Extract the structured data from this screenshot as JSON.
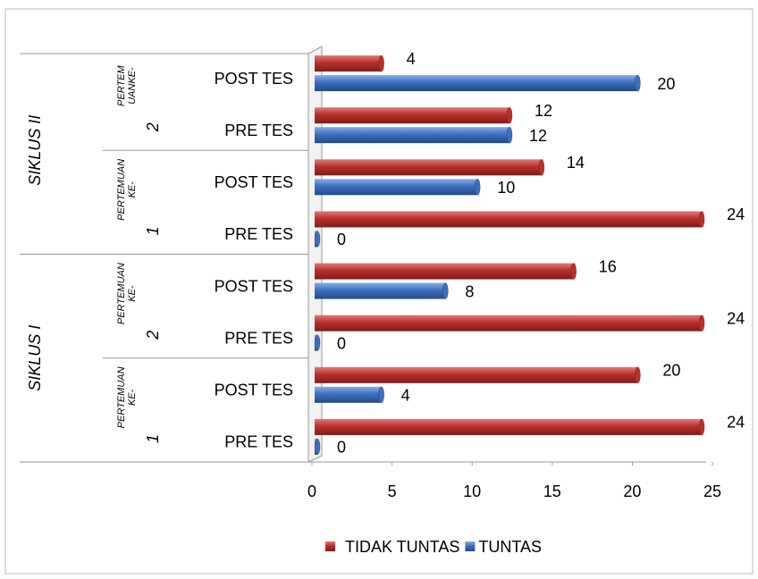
{
  "chart_data": {
    "type": "bar",
    "orientation": "horizontal",
    "groups": [
      {
        "label": "SIKLUS I",
        "subgroups": [
          {
            "lines": [
              "PERTEMUAN",
              "KE-"
            ],
            "number": "1"
          },
          {
            "lines": [
              "PERTEMUAN",
              "KE-"
            ],
            "number": "2"
          }
        ]
      },
      {
        "label": "SIKLUS II",
        "subgroups": [
          {
            "lines": [
              "PERTEMUAN",
              "KE-"
            ],
            "number": "1"
          },
          {
            "lines": [
              "PERTEM",
              "UANKE-"
            ],
            "number": "2"
          }
        ]
      }
    ],
    "categories": [
      "PRE TES",
      "POST TES",
      "PRE TES",
      "POST TES",
      "PRE TES",
      "POST TES",
      "PRE TES",
      "POST TES"
    ],
    "series": [
      {
        "name": "TIDAK TUNTAS",
        "color": "#b8302d",
        "values": [
          24,
          20,
          24,
          16,
          24,
          14,
          12,
          4
        ]
      },
      {
        "name": "TUNTAS",
        "color": "#3b6fbf",
        "values": [
          0,
          4,
          0,
          8,
          0,
          10,
          12,
          20
        ]
      }
    ],
    "xlim": [
      0,
      25
    ],
    "xticks": [
      0,
      5,
      10,
      15,
      20,
      25
    ],
    "legend": "bottom"
  }
}
